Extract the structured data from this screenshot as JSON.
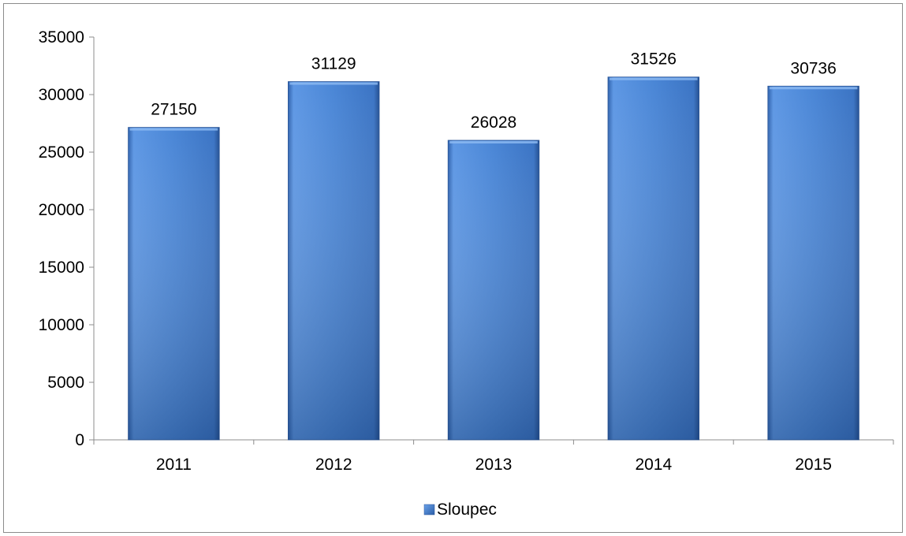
{
  "chart_data": {
    "type": "bar",
    "title": "",
    "xlabel": "",
    "ylabel": "",
    "categories": [
      "2011",
      "2012",
      "2013",
      "2014",
      "2015"
    ],
    "series": [
      {
        "name": "Sloupec",
        "values": [
          27150,
          31129,
          26028,
          31526,
          30736
        ],
        "color": "#4a86d6"
      }
    ],
    "ylim": [
      0,
      35000
    ],
    "yticks": [
      0,
      5000,
      10000,
      15000,
      20000,
      25000,
      30000,
      35000
    ],
    "ytick_labels": [
      "0",
      "5000",
      "10000",
      "15000",
      "20000",
      "25000",
      "30000",
      "35000"
    ],
    "data_labels": [
      "27150",
      "31129",
      "26028",
      "31526",
      "30736"
    ],
    "grid": false,
    "legend": {
      "position": "bottom",
      "entries": [
        "Sloupec"
      ]
    }
  }
}
